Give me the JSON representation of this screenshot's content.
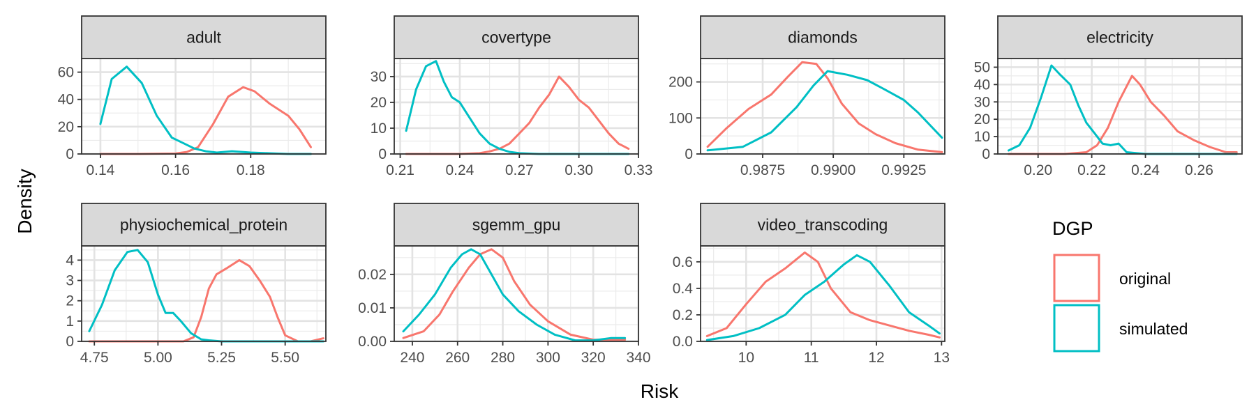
{
  "chart_data": {
    "type": "line",
    "xlabel": "Risk",
    "ylabel": "Density",
    "legend": {
      "title": "DGP",
      "placement": "right",
      "entries": [
        {
          "label": "original",
          "color": "#F8766D"
        },
        {
          "label": "simulated",
          "color": "#00BFC4"
        }
      ]
    },
    "grid": true,
    "panels": [
      {
        "name": "adult",
        "xlim": [
          0.135,
          0.2
        ],
        "xticks": [
          0.14,
          0.16,
          0.18
        ],
        "xtick_labels": [
          "0.14",
          "0.16",
          "0.18"
        ],
        "ylim": [
          0,
          70
        ],
        "yticks": [
          0,
          20,
          40,
          60
        ],
        "ytick_labels": [
          "0",
          "20",
          "40",
          "60"
        ],
        "series": [
          {
            "name": "original",
            "x": [
              0.14,
              0.15,
              0.16,
              0.163,
              0.166,
              0.17,
              0.174,
              0.178,
              0.181,
              0.185,
              0.19,
              0.193,
              0.196
            ],
            "y": [
              0,
              0,
              0.3,
              1.5,
              5,
              22,
              42,
              49,
              46,
              37,
              28,
              18,
              5
            ]
          },
          {
            "name": "simulated",
            "x": [
              0.14,
              0.143,
              0.147,
              0.151,
              0.155,
              0.159,
              0.162,
              0.165,
              0.168,
              0.171,
              0.175,
              0.18,
              0.185,
              0.19,
              0.196
            ],
            "y": [
              22,
              55,
              64,
              52,
              28,
              12,
              8,
              4,
              2,
              1,
              2,
              1,
              0.5,
              0,
              0
            ]
          }
        ]
      },
      {
        "name": "covertype",
        "xlim": [
          0.207,
          0.33
        ],
        "xticks": [
          0.21,
          0.24,
          0.27,
          0.3,
          0.33
        ],
        "xtick_labels": [
          "0.21",
          "0.24",
          "0.27",
          "0.30",
          "0.33"
        ],
        "ylim": [
          0,
          37
        ],
        "yticks": [
          0,
          10,
          20,
          30
        ],
        "ytick_labels": [
          "0",
          "10",
          "20",
          "30"
        ],
        "series": [
          {
            "name": "original",
            "x": [
              0.213,
              0.24,
              0.25,
              0.255,
              0.26,
              0.265,
              0.27,
              0.275,
              0.28,
              0.285,
              0.29,
              0.295,
              0.3,
              0.305,
              0.31,
              0.315,
              0.32,
              0.325
            ],
            "y": [
              0,
              0,
              0.3,
              1,
              2,
              4,
              8,
              12,
              18,
              23,
              30,
              26,
              21,
              18,
              13,
              8,
              4,
              2
            ]
          },
          {
            "name": "simulated",
            "x": [
              0.213,
              0.218,
              0.223,
              0.228,
              0.232,
              0.236,
              0.24,
              0.245,
              0.25,
              0.255,
              0.26,
              0.265,
              0.27,
              0.28,
              0.3,
              0.325
            ],
            "y": [
              9,
              25,
              34,
              36,
              28,
              22,
              20,
              14,
              8,
              4,
              2,
              0.8,
              0.3,
              0,
              0,
              0
            ]
          }
        ]
      },
      {
        "name": "diamonds",
        "xlim": [
          0.9853,
          0.99395
        ],
        "xticks": [
          0.9875,
          0.99,
          0.9925
        ],
        "xtick_labels": [
          "0.9875",
          "0.9900",
          "0.9925"
        ],
        "ylim": [
          0,
          265
        ],
        "yticks": [
          0,
          100,
          200
        ],
        "ytick_labels": [
          "0",
          "100",
          "200"
        ],
        "series": [
          {
            "name": "original",
            "x": [
              0.98555,
              0.9862,
              0.987,
              0.9878,
              0.9884,
              0.9889,
              0.9894,
              0.9898,
              0.9903,
              0.9909,
              0.9915,
              0.9922,
              0.993,
              0.99385
            ],
            "y": [
              20,
              70,
              125,
              165,
              215,
              255,
              250,
              210,
              140,
              85,
              55,
              30,
              12,
              5
            ]
          },
          {
            "name": "simulated",
            "x": [
              0.98555,
              0.9868,
              0.9878,
              0.9887,
              0.9893,
              0.9898,
              0.9905,
              0.9912,
              0.9918,
              0.9925,
              0.993,
              0.99385
            ],
            "y": [
              10,
              20,
              60,
              130,
              190,
              230,
              220,
              205,
              180,
              150,
              115,
              45
            ]
          }
        ]
      },
      {
        "name": "electricity",
        "xlim": [
          0.185,
          0.276
        ],
        "xticks": [
          0.2,
          0.22,
          0.24,
          0.26
        ],
        "xtick_labels": [
          "0.20",
          "0.22",
          "0.24",
          "0.26"
        ],
        "ylim": [
          0,
          55
        ],
        "yticks": [
          0,
          10,
          20,
          30,
          40,
          50
        ],
        "ytick_labels": [
          "0",
          "10",
          "20",
          "30",
          "40",
          "50"
        ],
        "series": [
          {
            "name": "original",
            "x": [
              0.189,
              0.21,
              0.218,
              0.222,
              0.226,
              0.23,
              0.235,
              0.238,
              0.242,
              0.247,
              0.252,
              0.258,
              0.264,
              0.27,
              0.274
            ],
            "y": [
              0,
              0,
              1,
              5,
              15,
              30,
              45,
              40,
              30,
              22,
              13,
              8,
              4,
              1,
              1
            ]
          },
          {
            "name": "simulated",
            "x": [
              0.189,
              0.193,
              0.197,
              0.201,
              0.205,
              0.208,
              0.212,
              0.215,
              0.218,
              0.221,
              0.224,
              0.227,
              0.23,
              0.233,
              0.24,
              0.274
            ],
            "y": [
              2,
              5,
              15,
              32,
              51,
              46,
              40,
              28,
              18,
              12,
              6,
              5,
              6,
              1,
              0,
              0
            ]
          }
        ]
      },
      {
        "name": "physiochemical_protein",
        "xlim": [
          4.7,
          5.66
        ],
        "xticks": [
          4.75,
          5.0,
          5.25,
          5.5
        ],
        "xtick_labels": [
          "4.75",
          "5.00",
          "5.25",
          "5.50"
        ],
        "ylim": [
          0,
          4.7
        ],
        "yticks": [
          0,
          1,
          2,
          3,
          4
        ],
        "ytick_labels": [
          "0",
          "1",
          "2",
          "3",
          "4"
        ],
        "series": [
          {
            "name": "original",
            "x": [
              4.73,
              5.1,
              5.14,
              5.17,
              5.2,
              5.23,
              5.27,
              5.32,
              5.36,
              5.4,
              5.44,
              5.47,
              5.5,
              5.55,
              5.6,
              5.65
            ],
            "y": [
              0,
              0,
              0.2,
              1.2,
              2.6,
              3.3,
              3.6,
              4.0,
              3.7,
              3.0,
              2.2,
              1.2,
              0.3,
              0,
              0,
              0.15
            ]
          },
          {
            "name": "simulated",
            "x": [
              4.73,
              4.78,
              4.83,
              4.88,
              4.92,
              4.96,
              5.0,
              5.03,
              5.06,
              5.09,
              5.13,
              5.17,
              5.2,
              5.25,
              5.3,
              5.65
            ],
            "y": [
              0.5,
              1.8,
              3.5,
              4.4,
              4.5,
              3.9,
              2.3,
              1.4,
              1.4,
              1.0,
              0.4,
              0.1,
              0.05,
              0,
              0,
              0
            ]
          }
        ]
      },
      {
        "name": "sgemm_gpu",
        "xlim": [
          232,
          340
        ],
        "xticks": [
          240,
          260,
          280,
          300,
          320,
          340
        ],
        "xtick_labels": [
          "240",
          "260",
          "280",
          "300",
          "320",
          "340"
        ],
        "ylim": [
          0,
          0.0285
        ],
        "yticks": [
          0,
          0.01,
          0.02
        ],
        "ytick_labels": [
          "0.00",
          "0.01",
          "0.02"
        ],
        "series": [
          {
            "name": "original",
            "x": [
              236,
              245,
              252,
              258,
              265,
              270,
              275,
              280,
              285,
              292,
              300,
              310,
              320,
              334
            ],
            "y": [
              0.001,
              0.003,
              0.008,
              0.015,
              0.022,
              0.026,
              0.0275,
              0.025,
              0.018,
              0.011,
              0.006,
              0.002,
              0.0005,
              0.0005
            ]
          },
          {
            "name": "simulated",
            "x": [
              236,
              243,
              250,
              257,
              262,
              266,
              270,
              275,
              280,
              287,
              295,
              303,
              312,
              320,
              328,
              334
            ],
            "y": [
              0.003,
              0.008,
              0.014,
              0.022,
              0.026,
              0.0275,
              0.026,
              0.02,
              0.014,
              0.009,
              0.005,
              0.002,
              0.0003,
              0.0003,
              0.001,
              0.001
            ]
          }
        ]
      },
      {
        "name": "video_transcoding",
        "xlim": [
          9.3,
          13.05
        ],
        "xticks": [
          10,
          11,
          12,
          13
        ],
        "xtick_labels": [
          "10",
          "11",
          "12",
          "13"
        ],
        "ylim": [
          0,
          0.72
        ],
        "yticks": [
          0,
          0.2,
          0.4,
          0.6
        ],
        "ytick_labels": [
          "0.0",
          "0.2",
          "0.4",
          "0.6"
        ],
        "series": [
          {
            "name": "original",
            "x": [
              9.4,
              9.7,
              10.0,
              10.3,
              10.6,
              10.9,
              11.1,
              11.3,
              11.6,
              11.9,
              12.2,
              12.5,
              12.8,
              12.97
            ],
            "y": [
              0.04,
              0.1,
              0.28,
              0.45,
              0.55,
              0.67,
              0.6,
              0.4,
              0.22,
              0.16,
              0.12,
              0.08,
              0.05,
              0.03
            ]
          },
          {
            "name": "simulated",
            "x": [
              9.4,
              9.8,
              10.2,
              10.6,
              10.9,
              11.2,
              11.5,
              11.7,
              11.9,
              12.2,
              12.5,
              12.8,
              12.97
            ],
            "y": [
              0.01,
              0.04,
              0.1,
              0.2,
              0.35,
              0.45,
              0.58,
              0.65,
              0.6,
              0.42,
              0.22,
              0.12,
              0.06
            ]
          }
        ]
      }
    ]
  }
}
